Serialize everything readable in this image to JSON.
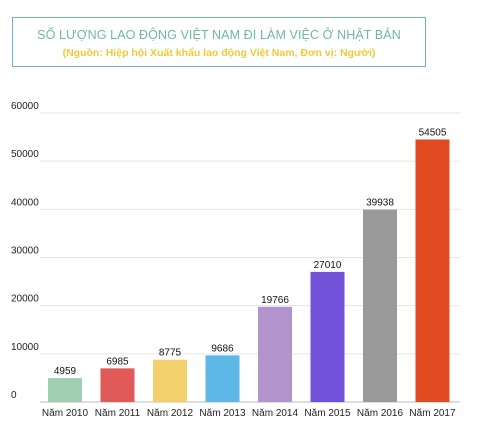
{
  "chart_data": {
    "type": "bar",
    "title": "SỐ LƯỢNG LAO ĐỘNG VIỆT NAM ĐI LÀM VIỆC Ở NHẬT BẢN",
    "subtitle": "(Nguồn: Hiệp hội Xuất khẩu lao động Việt Nam, Đơn vị: Người)",
    "xlabel": "",
    "ylabel": "",
    "categories": [
      "Năm 2010",
      "Năm 2011",
      "Năm 2012",
      "Năm 2013",
      "Năm 2014",
      "Năm 2015",
      "Năm 2016",
      "Năm 2017"
    ],
    "values": [
      4959,
      6985,
      8775,
      9686,
      19766,
      27010,
      39938,
      54505
    ],
    "value_labels": [
      "4959",
      "6985",
      "8775",
      "9686",
      "19766",
      "27010",
      "39938",
      "54505"
    ],
    "colors": [
      "#9fcfb0",
      "#e05a5a",
      "#f2d06c",
      "#5db7e7",
      "#b294cc",
      "#7152d9",
      "#9a9a9a",
      "#e14b22"
    ],
    "ylim": [
      0,
      60000
    ],
    "yticks": [
      0,
      10000,
      20000,
      30000,
      40000,
      50000,
      60000
    ],
    "ytick_labels": [
      "0",
      "10000",
      "20000",
      "30000",
      "40000",
      "50000",
      "60000"
    ],
    "grid": true,
    "legend": "none"
  },
  "colors": {
    "title": "#6fb7a7",
    "subtitle": "#f0c93a",
    "title_border": "#6bb6c6",
    "grid": "#e6e6e6"
  }
}
